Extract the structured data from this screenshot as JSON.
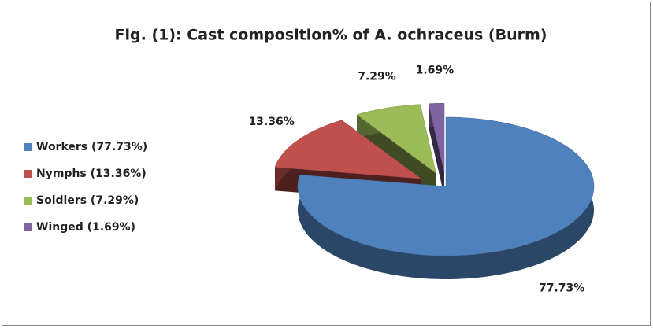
{
  "chart_data": {
    "type": "pie",
    "title": "Fig. (1): Cast composition% of A. ochraceus (Burm)",
    "categories": [
      "Workers (77.73%)",
      "Nymphs (13.36%)",
      "Soldiers (7.29%)",
      "Winged (1.69%)"
    ],
    "values": [
      77.73,
      13.36,
      7.29,
      1.69
    ],
    "value_labels": [
      "77.73%",
      "13.36%",
      "7.29%",
      "1.69%"
    ],
    "colors": [
      "#4f81bd",
      "#c0504d",
      "#9bbb59",
      "#8064a2"
    ],
    "legend": "left"
  }
}
